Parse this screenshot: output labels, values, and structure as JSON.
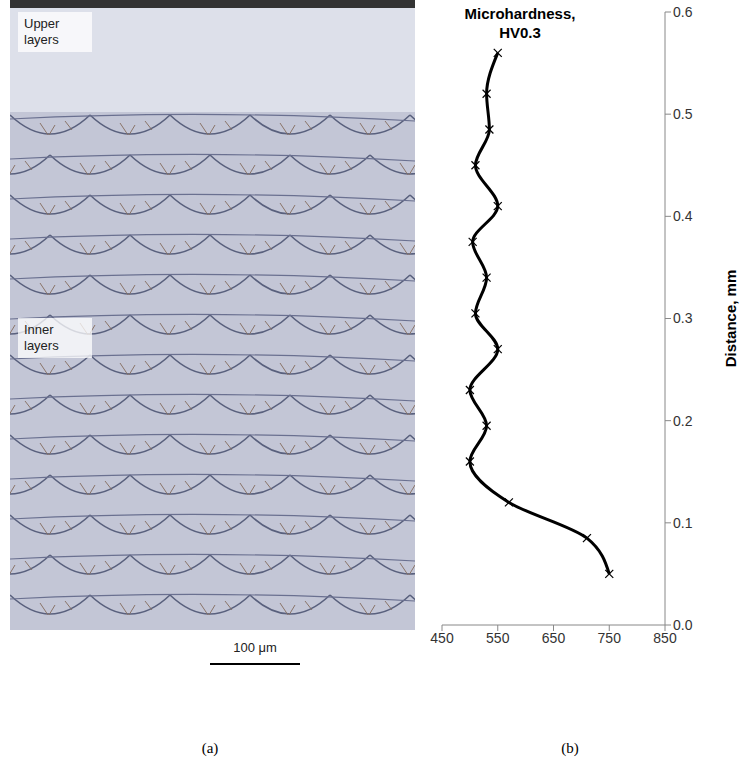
{
  "figure": {
    "panel_labels": [
      "(a)",
      "(b)"
    ],
    "micrograph": {
      "labels": [
        "Upper layers",
        "Inner layers"
      ],
      "scale_bar": "100 μm"
    }
  },
  "chart_data": {
    "type": "line",
    "x_label": "Microhardness, HV0.3",
    "y_label": "Distance, mm",
    "x": [
      750,
      710,
      570,
      500,
      530,
      500,
      550,
      510,
      530,
      505,
      550,
      510,
      535,
      530,
      550
    ],
    "y": [
      0.05,
      0.085,
      0.12,
      0.16,
      0.195,
      0.23,
      0.27,
      0.305,
      0.34,
      0.375,
      0.41,
      0.45,
      0.485,
      0.52,
      0.56
    ],
    "xlim": [
      450,
      850
    ],
    "xticks": [
      450,
      550,
      650,
      750,
      850
    ],
    "ylim": [
      0,
      0.6
    ],
    "yticks": [
      {
        "value": 0,
        "label": "0.0"
      },
      {
        "value": 0.1,
        "label": "0.1"
      },
      {
        "value": 0.2,
        "label": "0.2"
      },
      {
        "value": 0.3,
        "label": "0.3"
      },
      {
        "value": 0.4,
        "label": "0.4"
      },
      {
        "value": 0.5,
        "label": "0.5"
      },
      {
        "value": 0.6,
        "label": "0.6"
      }
    ],
    "color": "#000000",
    "marker": "x",
    "line_style": "solid",
    "grid": false
  }
}
